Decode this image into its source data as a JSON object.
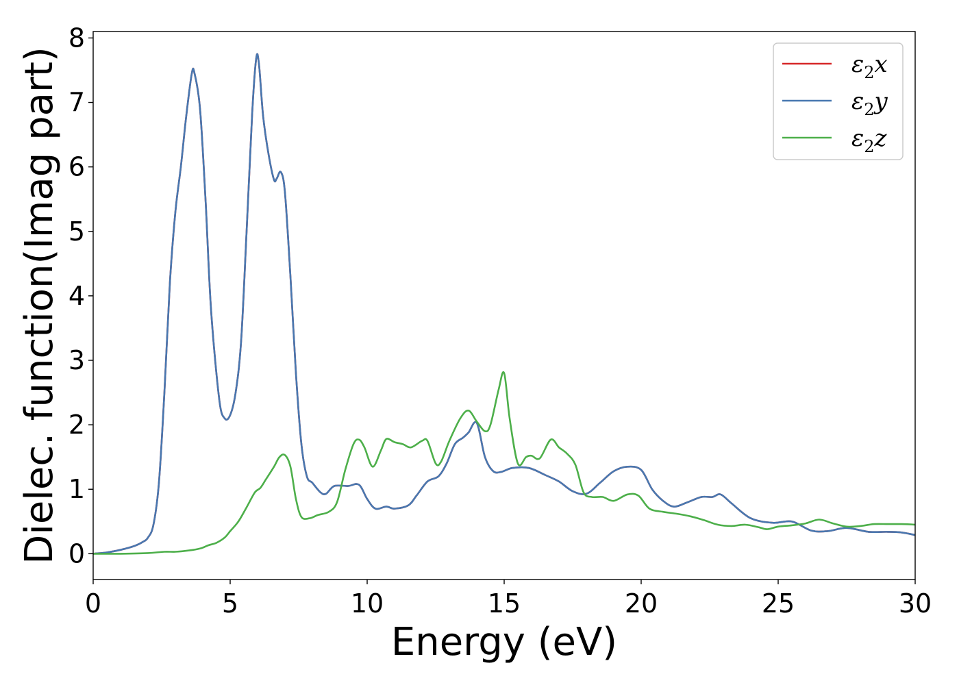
{
  "chart_data": {
    "type": "line",
    "xlabel": "Energy (eV)",
    "ylabel": "Dielec. function(Imag part)",
    "xlim": [
      0,
      30
    ],
    "ylim": [
      -0.4,
      8.1
    ],
    "xticks": [
      "0",
      "5",
      "10",
      "15",
      "20",
      "25",
      "30"
    ],
    "yticks": [
      "0",
      "1",
      "2",
      "3",
      "4",
      "5",
      "6",
      "7",
      "8"
    ],
    "grid": false,
    "legend_position": "top-right",
    "series": [
      {
        "name": "ε2x",
        "legend_base": "ε",
        "legend_sub": "2",
        "legend_tail": "x",
        "color": "#d62728",
        "points": [
          [
            0,
            0.0
          ],
          [
            0.5,
            0.02
          ],
          [
            1.0,
            0.06
          ],
          [
            1.5,
            0.12
          ],
          [
            1.8,
            0.18
          ],
          [
            2.0,
            0.25
          ],
          [
            2.2,
            0.45
          ],
          [
            2.4,
            1.1
          ],
          [
            2.6,
            2.5
          ],
          [
            2.8,
            4.2
          ],
          [
            3.0,
            5.3
          ],
          [
            3.2,
            6.0
          ],
          [
            3.4,
            6.8
          ],
          [
            3.6,
            7.45
          ],
          [
            3.7,
            7.45
          ],
          [
            3.9,
            6.9
          ],
          [
            4.1,
            5.5
          ],
          [
            4.3,
            3.8
          ],
          [
            4.6,
            2.4
          ],
          [
            4.8,
            2.1
          ],
          [
            5.0,
            2.15
          ],
          [
            5.2,
            2.5
          ],
          [
            5.4,
            3.3
          ],
          [
            5.6,
            5.0
          ],
          [
            5.8,
            6.8
          ],
          [
            5.95,
            7.68
          ],
          [
            6.05,
            7.6
          ],
          [
            6.2,
            6.8
          ],
          [
            6.4,
            6.2
          ],
          [
            6.6,
            5.8
          ],
          [
            6.7,
            5.82
          ],
          [
            6.85,
            5.92
          ],
          [
            7.0,
            5.6
          ],
          [
            7.2,
            4.3
          ],
          [
            7.4,
            2.8
          ],
          [
            7.6,
            1.7
          ],
          [
            7.8,
            1.2
          ],
          [
            8.0,
            1.1
          ],
          [
            8.3,
            0.95
          ],
          [
            8.5,
            0.93
          ],
          [
            8.8,
            1.05
          ],
          [
            9.3,
            1.05
          ],
          [
            9.7,
            1.07
          ],
          [
            10.0,
            0.85
          ],
          [
            10.3,
            0.7
          ],
          [
            10.7,
            0.73
          ],
          [
            11.0,
            0.7
          ],
          [
            11.5,
            0.75
          ],
          [
            11.8,
            0.9
          ],
          [
            12.2,
            1.12
          ],
          [
            12.6,
            1.2
          ],
          [
            12.9,
            1.4
          ],
          [
            13.2,
            1.7
          ],
          [
            13.5,
            1.8
          ],
          [
            13.7,
            1.88
          ],
          [
            14.0,
            2.03
          ],
          [
            14.3,
            1.5
          ],
          [
            14.6,
            1.28
          ],
          [
            14.9,
            1.27
          ],
          [
            15.3,
            1.33
          ],
          [
            15.9,
            1.33
          ],
          [
            16.5,
            1.22
          ],
          [
            17.0,
            1.12
          ],
          [
            17.5,
            0.97
          ],
          [
            18.0,
            0.93
          ],
          [
            18.5,
            1.1
          ],
          [
            19.0,
            1.28
          ],
          [
            19.5,
            1.35
          ],
          [
            20.0,
            1.3
          ],
          [
            20.4,
            1.0
          ],
          [
            20.8,
            0.82
          ],
          [
            21.2,
            0.73
          ],
          [
            21.7,
            0.8
          ],
          [
            22.2,
            0.88
          ],
          [
            22.6,
            0.88
          ],
          [
            22.9,
            0.92
          ],
          [
            23.3,
            0.78
          ],
          [
            24.0,
            0.55
          ],
          [
            24.8,
            0.48
          ],
          [
            25.5,
            0.5
          ],
          [
            26.2,
            0.36
          ],
          [
            26.8,
            0.35
          ],
          [
            27.5,
            0.4
          ],
          [
            28.3,
            0.34
          ],
          [
            29.0,
            0.34
          ],
          [
            29.5,
            0.33
          ],
          [
            30.0,
            0.29
          ]
        ]
      },
      {
        "name": "ε2y",
        "legend_base": "ε",
        "legend_sub": "2",
        "legend_tail": "y",
        "color": "#4878b0",
        "points": [
          [
            0,
            0.0
          ],
          [
            0.5,
            0.02
          ],
          [
            1.0,
            0.06
          ],
          [
            1.5,
            0.12
          ],
          [
            1.8,
            0.18
          ],
          [
            2.0,
            0.25
          ],
          [
            2.2,
            0.45
          ],
          [
            2.4,
            1.1
          ],
          [
            2.6,
            2.5
          ],
          [
            2.8,
            4.2
          ],
          [
            3.0,
            5.3
          ],
          [
            3.2,
            6.0
          ],
          [
            3.4,
            6.8
          ],
          [
            3.6,
            7.45
          ],
          [
            3.7,
            7.45
          ],
          [
            3.9,
            6.9
          ],
          [
            4.1,
            5.5
          ],
          [
            4.3,
            3.8
          ],
          [
            4.6,
            2.4
          ],
          [
            4.8,
            2.1
          ],
          [
            5.0,
            2.15
          ],
          [
            5.2,
            2.5
          ],
          [
            5.4,
            3.3
          ],
          [
            5.6,
            5.0
          ],
          [
            5.8,
            6.8
          ],
          [
            5.95,
            7.68
          ],
          [
            6.05,
            7.6
          ],
          [
            6.2,
            6.8
          ],
          [
            6.4,
            6.2
          ],
          [
            6.6,
            5.8
          ],
          [
            6.7,
            5.82
          ],
          [
            6.85,
            5.92
          ],
          [
            7.0,
            5.6
          ],
          [
            7.2,
            4.3
          ],
          [
            7.4,
            2.8
          ],
          [
            7.6,
            1.7
          ],
          [
            7.8,
            1.2
          ],
          [
            8.0,
            1.1
          ],
          [
            8.3,
            0.95
          ],
          [
            8.5,
            0.93
          ],
          [
            8.8,
            1.05
          ],
          [
            9.3,
            1.05
          ],
          [
            9.7,
            1.07
          ],
          [
            10.0,
            0.85
          ],
          [
            10.3,
            0.7
          ],
          [
            10.7,
            0.73
          ],
          [
            11.0,
            0.7
          ],
          [
            11.5,
            0.75
          ],
          [
            11.8,
            0.9
          ],
          [
            12.2,
            1.12
          ],
          [
            12.6,
            1.2
          ],
          [
            12.9,
            1.4
          ],
          [
            13.2,
            1.7
          ],
          [
            13.5,
            1.8
          ],
          [
            13.7,
            1.88
          ],
          [
            14.0,
            2.03
          ],
          [
            14.3,
            1.5
          ],
          [
            14.6,
            1.28
          ],
          [
            14.9,
            1.27
          ],
          [
            15.3,
            1.33
          ],
          [
            15.9,
            1.33
          ],
          [
            16.5,
            1.22
          ],
          [
            17.0,
            1.12
          ],
          [
            17.5,
            0.97
          ],
          [
            18.0,
            0.93
          ],
          [
            18.5,
            1.1
          ],
          [
            19.0,
            1.28
          ],
          [
            19.5,
            1.35
          ],
          [
            20.0,
            1.3
          ],
          [
            20.4,
            1.0
          ],
          [
            20.8,
            0.82
          ],
          [
            21.2,
            0.73
          ],
          [
            21.7,
            0.8
          ],
          [
            22.2,
            0.88
          ],
          [
            22.6,
            0.88
          ],
          [
            22.9,
            0.92
          ],
          [
            23.3,
            0.78
          ],
          [
            24.0,
            0.55
          ],
          [
            24.8,
            0.48
          ],
          [
            25.5,
            0.5
          ],
          [
            26.2,
            0.36
          ],
          [
            26.8,
            0.35
          ],
          [
            27.5,
            0.4
          ],
          [
            28.3,
            0.34
          ],
          [
            29.0,
            0.34
          ],
          [
            29.5,
            0.33
          ],
          [
            30.0,
            0.29
          ]
        ]
      },
      {
        "name": "ε2z",
        "legend_base": "ε",
        "legend_sub": "2",
        "legend_tail": "z",
        "color": "#4daf4a",
        "points": [
          [
            0,
            0.0
          ],
          [
            1.0,
            0.0
          ],
          [
            2.0,
            0.01
          ],
          [
            2.6,
            0.03
          ],
          [
            3.0,
            0.03
          ],
          [
            3.5,
            0.05
          ],
          [
            3.9,
            0.08
          ],
          [
            4.2,
            0.13
          ],
          [
            4.5,
            0.17
          ],
          [
            4.8,
            0.25
          ],
          [
            5.0,
            0.35
          ],
          [
            5.3,
            0.5
          ],
          [
            5.6,
            0.72
          ],
          [
            5.9,
            0.95
          ],
          [
            6.1,
            1.02
          ],
          [
            6.3,
            1.15
          ],
          [
            6.6,
            1.35
          ],
          [
            6.8,
            1.5
          ],
          [
            7.0,
            1.53
          ],
          [
            7.2,
            1.35
          ],
          [
            7.4,
            0.85
          ],
          [
            7.6,
            0.57
          ],
          [
            7.9,
            0.55
          ],
          [
            8.2,
            0.6
          ],
          [
            8.6,
            0.65
          ],
          [
            8.9,
            0.8
          ],
          [
            9.2,
            1.3
          ],
          [
            9.5,
            1.7
          ],
          [
            9.7,
            1.77
          ],
          [
            9.9,
            1.65
          ],
          [
            10.2,
            1.35
          ],
          [
            10.5,
            1.6
          ],
          [
            10.7,
            1.78
          ],
          [
            11.0,
            1.73
          ],
          [
            11.3,
            1.7
          ],
          [
            11.6,
            1.65
          ],
          [
            12.0,
            1.75
          ],
          [
            12.2,
            1.75
          ],
          [
            12.5,
            1.4
          ],
          [
            12.7,
            1.43
          ],
          [
            13.0,
            1.75
          ],
          [
            13.4,
            2.1
          ],
          [
            13.7,
            2.22
          ],
          [
            14.0,
            2.05
          ],
          [
            14.3,
            1.9
          ],
          [
            14.5,
            2.0
          ],
          [
            14.8,
            2.55
          ],
          [
            15.0,
            2.8
          ],
          [
            15.2,
            2.1
          ],
          [
            15.5,
            1.4
          ],
          [
            15.8,
            1.5
          ],
          [
            16.0,
            1.52
          ],
          [
            16.3,
            1.48
          ],
          [
            16.7,
            1.77
          ],
          [
            17.0,
            1.65
          ],
          [
            17.3,
            1.55
          ],
          [
            17.6,
            1.38
          ],
          [
            17.9,
            0.95
          ],
          [
            18.2,
            0.88
          ],
          [
            18.6,
            0.88
          ],
          [
            19.0,
            0.82
          ],
          [
            19.5,
            0.92
          ],
          [
            19.9,
            0.9
          ],
          [
            20.3,
            0.7
          ],
          [
            20.8,
            0.65
          ],
          [
            21.3,
            0.62
          ],
          [
            21.8,
            0.58
          ],
          [
            22.3,
            0.52
          ],
          [
            22.8,
            0.45
          ],
          [
            23.3,
            0.43
          ],
          [
            23.8,
            0.45
          ],
          [
            24.3,
            0.41
          ],
          [
            24.6,
            0.38
          ],
          [
            25.0,
            0.42
          ],
          [
            25.5,
            0.44
          ],
          [
            26.0,
            0.47
          ],
          [
            26.5,
            0.53
          ],
          [
            27.0,
            0.47
          ],
          [
            27.5,
            0.42
          ],
          [
            28.0,
            0.43
          ],
          [
            28.5,
            0.46
          ],
          [
            29.0,
            0.46
          ],
          [
            29.5,
            0.46
          ],
          [
            30.0,
            0.45
          ]
        ]
      }
    ]
  }
}
